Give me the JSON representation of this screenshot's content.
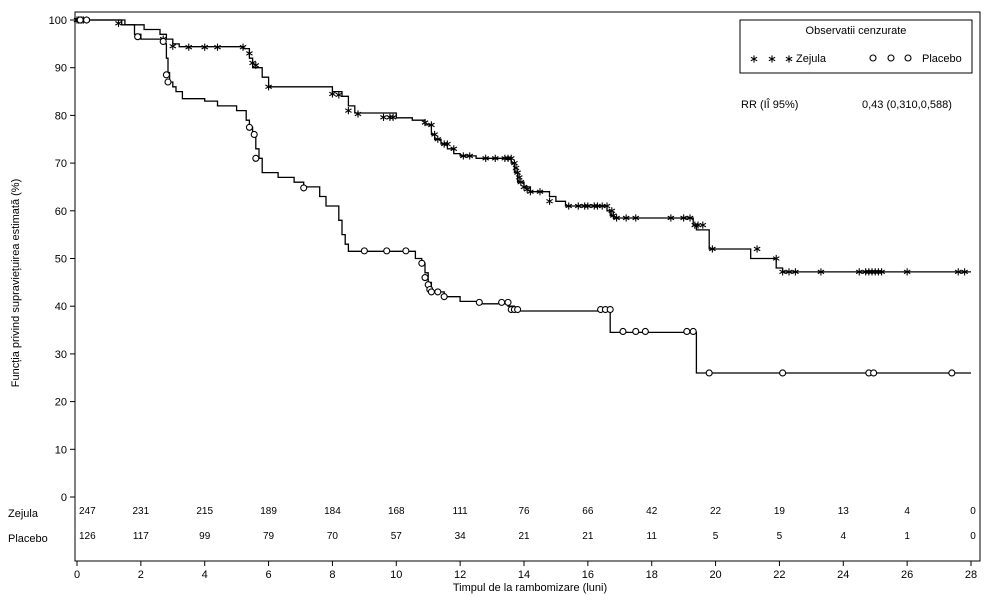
{
  "chart_data": {
    "type": "line",
    "subtype": "kaplan-meier",
    "title": "",
    "xlabel": "Timpul de la rambomizare (luni)",
    "ylabel": "Funcția privind supraviețuirea estimată (%)",
    "xlim": [
      0,
      28
    ],
    "ylim": [
      0,
      100
    ],
    "x_ticks": [
      0,
      2,
      4,
      6,
      8,
      10,
      12,
      14,
      16,
      18,
      20,
      22,
      24,
      26,
      28
    ],
    "y_ticks": [
      0,
      10,
      20,
      30,
      40,
      50,
      60,
      70,
      80,
      90,
      100
    ],
    "grid": false,
    "legend": {
      "title": "Observatii cenzurate",
      "placement": "top-right",
      "entries": [
        {
          "label": "Zejula",
          "marker": "asterisk"
        },
        {
          "label": "Placebo",
          "marker": "circle"
        }
      ],
      "stat_label": "RR (IÎ 95%)",
      "stat_value": "0,43 (0,310,0,588)"
    },
    "series": [
      {
        "name": "Zejula",
        "marker": "asterisk",
        "steps": [
          [
            0,
            100
          ],
          [
            1.4,
            99
          ],
          [
            2.1,
            98
          ],
          [
            2.6,
            97
          ],
          [
            2.8,
            96
          ],
          [
            3.0,
            95
          ],
          [
            3.2,
            94.4
          ],
          [
            5.2,
            94
          ],
          [
            5.4,
            92
          ],
          [
            5.5,
            90
          ],
          [
            5.8,
            88
          ],
          [
            6.0,
            86
          ],
          [
            8.0,
            85
          ],
          [
            8.3,
            84
          ],
          [
            8.5,
            82
          ],
          [
            8.7,
            80.5
          ],
          [
            10.0,
            79.5
          ],
          [
            10.5,
            79
          ],
          [
            10.9,
            78
          ],
          [
            11.1,
            76
          ],
          [
            11.2,
            75
          ],
          [
            11.4,
            74
          ],
          [
            11.6,
            73
          ],
          [
            11.8,
            72
          ],
          [
            12.0,
            71.5
          ],
          [
            12.5,
            71
          ],
          [
            13.6,
            70
          ],
          [
            13.7,
            68
          ],
          [
            13.8,
            66
          ],
          [
            14.0,
            65
          ],
          [
            14.2,
            64
          ],
          [
            14.8,
            63
          ],
          [
            15.0,
            62
          ],
          [
            15.3,
            61
          ],
          [
            16.6,
            60
          ],
          [
            16.7,
            59
          ],
          [
            16.8,
            58.5
          ],
          [
            19.3,
            57
          ],
          [
            19.4,
            56
          ],
          [
            19.8,
            52
          ],
          [
            21.1,
            50
          ],
          [
            21.9,
            48
          ],
          [
            22.1,
            47.2
          ],
          [
            28.0,
            47.2
          ]
        ],
        "censored": [
          [
            0,
            100
          ],
          [
            0.05,
            100
          ],
          [
            0.1,
            100
          ],
          [
            0.15,
            100
          ],
          [
            0.2,
            100
          ],
          [
            0.3,
            100
          ],
          [
            1.3,
            99.3
          ],
          [
            2.7,
            96
          ],
          [
            3.0,
            94.5
          ],
          [
            3.5,
            94.3
          ],
          [
            4.0,
            94.3
          ],
          [
            4.4,
            94.3
          ],
          [
            5.2,
            94.3
          ],
          [
            5.4,
            93
          ],
          [
            5.5,
            91
          ],
          [
            5.6,
            90.5
          ],
          [
            6.0,
            86
          ],
          [
            8.0,
            84.5
          ],
          [
            8.2,
            84.3
          ],
          [
            8.5,
            81
          ],
          [
            8.8,
            80.3
          ],
          [
            9.6,
            79.6
          ],
          [
            9.8,
            79.6
          ],
          [
            9.9,
            79.6
          ],
          [
            10.9,
            78.5
          ],
          [
            11.1,
            78
          ],
          [
            11.2,
            76
          ],
          [
            11.3,
            75
          ],
          [
            11.5,
            74
          ],
          [
            11.6,
            74
          ],
          [
            11.8,
            73
          ],
          [
            12.1,
            71.5
          ],
          [
            12.3,
            71.5
          ],
          [
            12.8,
            71
          ],
          [
            13.1,
            71
          ],
          [
            13.4,
            71
          ],
          [
            13.5,
            71
          ],
          [
            13.6,
            71
          ],
          [
            13.7,
            70
          ],
          [
            13.75,
            69
          ],
          [
            13.8,
            68
          ],
          [
            13.85,
            67
          ],
          [
            13.9,
            66
          ],
          [
            14.0,
            65
          ],
          [
            14.1,
            64.5
          ],
          [
            14.2,
            64
          ],
          [
            14.5,
            64
          ],
          [
            14.8,
            62
          ],
          [
            15.4,
            61
          ],
          [
            15.7,
            61
          ],
          [
            15.9,
            61
          ],
          [
            16.0,
            61
          ],
          [
            16.2,
            61
          ],
          [
            16.3,
            61
          ],
          [
            16.45,
            61
          ],
          [
            16.6,
            61
          ],
          [
            16.75,
            60
          ],
          [
            16.8,
            59
          ],
          [
            16.9,
            58.5
          ],
          [
            17.2,
            58.5
          ],
          [
            17.5,
            58.5
          ],
          [
            18.6,
            58.5
          ],
          [
            19.0,
            58.5
          ],
          [
            19.2,
            58.5
          ],
          [
            19.35,
            57
          ],
          [
            19.45,
            57
          ],
          [
            19.6,
            57
          ],
          [
            19.9,
            52
          ],
          [
            21.3,
            52
          ],
          [
            21.9,
            50
          ],
          [
            22.1,
            47.2
          ],
          [
            22.3,
            47.2
          ],
          [
            22.5,
            47.2
          ],
          [
            23.3,
            47.2
          ],
          [
            24.5,
            47.2
          ],
          [
            24.7,
            47.2
          ],
          [
            24.8,
            47.2
          ],
          [
            24.9,
            47.2
          ],
          [
            25.0,
            47.2
          ],
          [
            25.1,
            47.2
          ],
          [
            25.2,
            47.2
          ],
          [
            26.0,
            47.2
          ],
          [
            27.6,
            47.2
          ],
          [
            27.8,
            47.2
          ]
        ]
      },
      {
        "name": "Placebo",
        "marker": "circle",
        "steps": [
          [
            0,
            100
          ],
          [
            1.5,
            99
          ],
          [
            1.8,
            97
          ],
          [
            2.0,
            96
          ],
          [
            2.7,
            95
          ],
          [
            2.8,
            92
          ],
          [
            2.85,
            89
          ],
          [
            2.9,
            87
          ],
          [
            3.0,
            86
          ],
          [
            3.1,
            85
          ],
          [
            3.3,
            83.5
          ],
          [
            4.0,
            83
          ],
          [
            4.4,
            82
          ],
          [
            5.0,
            81
          ],
          [
            5.3,
            79
          ],
          [
            5.4,
            77.5
          ],
          [
            5.5,
            76
          ],
          [
            5.6,
            73
          ],
          [
            5.7,
            71
          ],
          [
            5.8,
            68
          ],
          [
            6.3,
            67
          ],
          [
            6.8,
            66
          ],
          [
            7.1,
            65
          ],
          [
            7.6,
            63
          ],
          [
            7.8,
            61
          ],
          [
            8.2,
            58
          ],
          [
            8.3,
            55
          ],
          [
            8.4,
            53
          ],
          [
            8.5,
            51.5
          ],
          [
            10.6,
            50
          ],
          [
            10.8,
            49
          ],
          [
            10.9,
            47
          ],
          [
            11.0,
            45
          ],
          [
            11.1,
            43
          ],
          [
            11.5,
            42
          ],
          [
            12.0,
            41
          ],
          [
            12.6,
            40.5
          ],
          [
            13.5,
            40
          ],
          [
            13.7,
            39
          ],
          [
            16.5,
            39
          ],
          [
            16.7,
            34.5
          ],
          [
            19.4,
            34.5
          ],
          [
            19.4,
            26
          ],
          [
            28.0,
            26
          ]
        ],
        "censored": [
          [
            0.1,
            100
          ],
          [
            0.3,
            100
          ],
          [
            1.9,
            96.5
          ],
          [
            2.7,
            95.5
          ],
          [
            2.8,
            88.5
          ],
          [
            2.85,
            87
          ],
          [
            5.4,
            77.5
          ],
          [
            5.55,
            76
          ],
          [
            5.6,
            71
          ],
          [
            7.1,
            64.8
          ],
          [
            9.0,
            51.6
          ],
          [
            9.7,
            51.6
          ],
          [
            10.3,
            51.6
          ],
          [
            10.8,
            49
          ],
          [
            10.9,
            46
          ],
          [
            11.0,
            44.5
          ],
          [
            11.05,
            43.5
          ],
          [
            11.1,
            43
          ],
          [
            11.3,
            43
          ],
          [
            11.5,
            42
          ],
          [
            12.6,
            40.8
          ],
          [
            13.3,
            40.8
          ],
          [
            13.5,
            40.8
          ],
          [
            13.6,
            39.3
          ],
          [
            13.7,
            39.3
          ],
          [
            13.8,
            39.3
          ],
          [
            16.4,
            39.3
          ],
          [
            16.55,
            39.3
          ],
          [
            16.7,
            39.3
          ],
          [
            17.1,
            34.7
          ],
          [
            17.5,
            34.7
          ],
          [
            17.8,
            34.7
          ],
          [
            19.1,
            34.7
          ],
          [
            19.3,
            34.7
          ],
          [
            19.8,
            26
          ],
          [
            22.1,
            26
          ],
          [
            24.8,
            26
          ],
          [
            24.95,
            26
          ],
          [
            27.4,
            26
          ]
        ]
      }
    ],
    "risk_table": [
      {
        "label": "Zejula",
        "counts": [
          "247",
          "231",
          "215",
          "189",
          "184",
          "168",
          "111",
          "76",
          "66",
          "42",
          "22",
          "19",
          "13",
          "4",
          "0"
        ]
      },
      {
        "label": "Placebo",
        "counts": [
          "126",
          "117",
          "99",
          "79",
          "70",
          "57",
          "34",
          "21",
          "21",
          "11",
          "5",
          "5",
          "4",
          "1",
          "0"
        ]
      }
    ]
  }
}
